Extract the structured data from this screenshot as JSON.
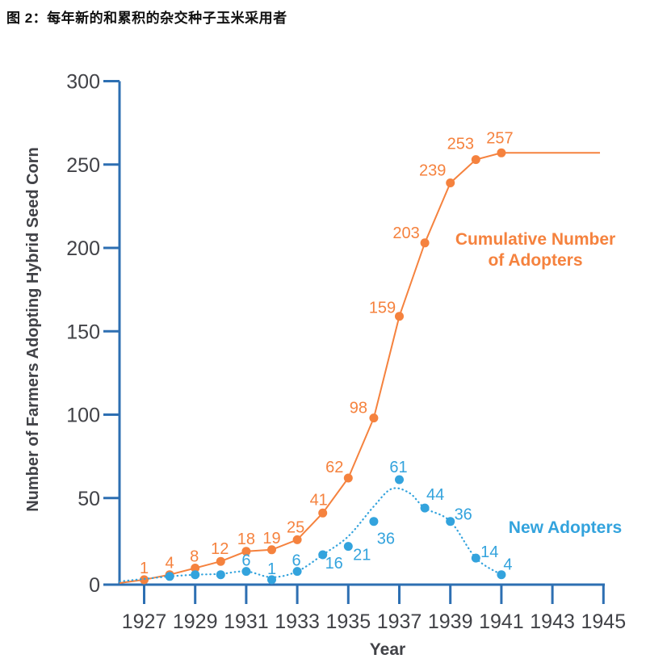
{
  "page_title": "图 2：每年新的和累积的杂交种子玉米采用者",
  "chart_data": {
    "type": "line",
    "xlabel": "Year",
    "ylabel": "Number of Farmers Adopting Hybrid Seed Corn",
    "x_ticks": [
      1927,
      1929,
      1931,
      1933,
      1935,
      1937,
      1939,
      1941,
      1943,
      1945
    ],
    "y_ticks": [
      0,
      50,
      100,
      150,
      200,
      250,
      300
    ],
    "xlim": [
      1926,
      1945
    ],
    "ylim": [
      0,
      300
    ],
    "grid": false,
    "colors": {
      "axis": "#2d6fb2",
      "tick_label": "#414247",
      "axis_title": "#414247",
      "cumulative": "#f5823e",
      "new_adopters": "#33a3dd"
    },
    "series": [
      {
        "name": "Cumulative Number of Adopters",
        "legend_lines": [
          "Cumulative Number",
          "of Adopters"
        ],
        "color": "#f5823e",
        "style": "solid",
        "marker": "circle",
        "starts_at_origin": true,
        "flat_extension": true,
        "points": [
          {
            "year": 1927,
            "value": 1,
            "label": "1",
            "dx": 0,
            "dy": -15
          },
          {
            "year": 1928,
            "value": 4,
            "label": "4",
            "dx": 0,
            "dy": -15
          },
          {
            "year": 1929,
            "value": 8,
            "label": "8",
            "dx": -1,
            "dy": -15
          },
          {
            "year": 1930,
            "value": 12,
            "label": "12",
            "dx": -1,
            "dy": -16
          },
          {
            "year": 1931,
            "value": 18,
            "label": "18",
            "dx": 0,
            "dy": -16
          },
          {
            "year": 1932,
            "value": 19,
            "label": "19",
            "dx": 0,
            "dy": -15
          },
          {
            "year": 1933,
            "value": 25,
            "label": "25",
            "dx": -2,
            "dy": -16
          },
          {
            "year": 1934,
            "value": 41,
            "label": "41",
            "dx": -5,
            "dy": -17
          },
          {
            "year": 1935,
            "value": 62,
            "label": "62",
            "dx": -17,
            "dy": -14
          },
          {
            "year": 1936,
            "value": 98,
            "label": "98",
            "dx": -19,
            "dy": -13
          },
          {
            "year": 1937,
            "value": 159,
            "label": "159",
            "dx": -21,
            "dy": -11
          },
          {
            "year": 1938,
            "value": 203,
            "label": "203",
            "dx": -23,
            "dy": -13
          },
          {
            "year": 1939,
            "value": 239,
            "label": "239",
            "dx": -22,
            "dy": -16
          },
          {
            "year": 1940,
            "value": 253,
            "label": "253",
            "dx": -19,
            "dy": -20
          },
          {
            "year": 1941,
            "value": 257,
            "label": "257",
            "dx": -2,
            "dy": -19
          }
        ]
      },
      {
        "name": "New Adopters",
        "legend_lines": [
          "New Adopters"
        ],
        "color": "#33a3dd",
        "style": "dotted",
        "marker": "circle",
        "starts_at_origin": true,
        "flat_extension": false,
        "points": [
          {
            "year": 1928,
            "value": 3,
            "label": "",
            "dx": 0,
            "dy": 0
          },
          {
            "year": 1929,
            "value": 4,
            "label": "",
            "dx": 0,
            "dy": 0
          },
          {
            "year": 1930,
            "value": 4,
            "label": "",
            "dx": 0,
            "dy": 0
          },
          {
            "year": 1931,
            "value": 6,
            "label": "6",
            "dx": 0,
            "dy": -14
          },
          {
            "year": 1932,
            "value": 1,
            "label": "1",
            "dx": 0,
            "dy": -14
          },
          {
            "year": 1933,
            "value": 6,
            "label": "6",
            "dx": -1,
            "dy": -14
          },
          {
            "year": 1934,
            "value": 16,
            "label": "16",
            "dx": 14,
            "dy": 10
          },
          {
            "year": 1935,
            "value": 21,
            "label": "21",
            "dx": 17,
            "dy": 10
          },
          {
            "year": 1936,
            "value": 36,
            "label": "36",
            "dx": 15,
            "dy": 21
          },
          {
            "year": 1937,
            "value": 61,
            "label": "61",
            "dx": -1,
            "dy": -16
          },
          {
            "year": 1938,
            "value": 44,
            "label": "44",
            "dx": 13,
            "dy": -17
          },
          {
            "year": 1939,
            "value": 36,
            "label": "36",
            "dx": 16,
            "dy": -9
          },
          {
            "year": 1940,
            "value": 14,
            "label": "14",
            "dx": 17,
            "dy": -8
          },
          {
            "year": 1941,
            "value": 4,
            "label": "4",
            "dx": 8,
            "dy": -13
          }
        ],
        "smooth_curve_points": [
          [
            1926.05,
            0
          ],
          [
            1927,
            1.5
          ],
          [
            1928,
            3
          ],
          [
            1929,
            4
          ],
          [
            1930,
            4.5
          ],
          [
            1931,
            6
          ],
          [
            1932,
            2.5
          ],
          [
            1933,
            6
          ],
          [
            1934,
            16
          ],
          [
            1935,
            27
          ],
          [
            1936,
            45
          ],
          [
            1936.7,
            55.5
          ],
          [
            1937.4,
            53
          ],
          [
            1938,
            44
          ],
          [
            1939,
            36
          ],
          [
            1940,
            14
          ],
          [
            1941,
            4
          ]
        ]
      }
    ],
    "legend": {
      "cumulative_position": "right of curve, upper area",
      "new_adopters_position": "right of curve, lower area"
    }
  }
}
